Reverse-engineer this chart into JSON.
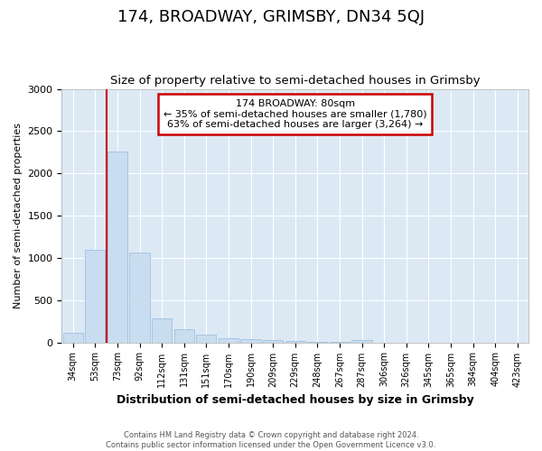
{
  "title": "174, BROADWAY, GRIMSBY, DN34 5QJ",
  "subtitle": "Size of property relative to semi-detached houses in Grimsby",
  "xlabel": "Distribution of semi-detached houses by size in Grimsby",
  "ylabel": "Number of semi-detached properties",
  "categories": [
    "34sqm",
    "53sqm",
    "73sqm",
    "92sqm",
    "112sqm",
    "131sqm",
    "151sqm",
    "170sqm",
    "190sqm",
    "209sqm",
    "229sqm",
    "248sqm",
    "267sqm",
    "287sqm",
    "306sqm",
    "326sqm",
    "345sqm",
    "365sqm",
    "384sqm",
    "404sqm",
    "423sqm"
  ],
  "values": [
    110,
    1100,
    2260,
    1060,
    280,
    155,
    90,
    50,
    40,
    25,
    20,
    10,
    6,
    30,
    0,
    0,
    0,
    0,
    0,
    0,
    0
  ],
  "bar_color": "#c9ddf0",
  "bar_edge_color": "#a0c0e0",
  "vline_x_index": 1.5,
  "annotation_line1": "174 BROADWAY: 80sqm",
  "annotation_line2": "← 35% of semi-detached houses are smaller (1,780)",
  "annotation_line3": "63% of semi-detached houses are larger (3,264) →",
  "annotation_box_facecolor": "#ffffff",
  "annotation_box_edgecolor": "#cc0000",
  "vline_color": "#cc0000",
  "ylim": [
    0,
    3000
  ],
  "yticks": [
    0,
    500,
    1000,
    1500,
    2000,
    2500,
    3000
  ],
  "grid_color": "#ffffff",
  "plot_bg_color": "#dce9f5",
  "fig_bg_color": "#ffffff",
  "title_fontsize": 13,
  "subtitle_fontsize": 9.5,
  "xlabel_fontsize": 9,
  "ylabel_fontsize": 8,
  "tick_fontsize": 8,
  "footer_line1": "Contains HM Land Registry data © Crown copyright and database right 2024.",
  "footer_line2": "Contains public sector information licensed under the Open Government Licence v3.0."
}
